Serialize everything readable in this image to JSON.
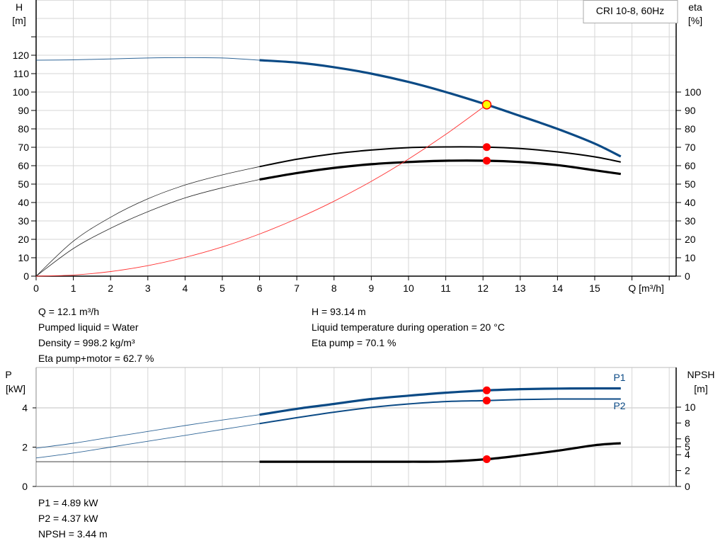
{
  "chart_data": [
    {
      "type": "line",
      "legend": "CRI 10-8, 60Hz",
      "xlabel": "Q [m³/h]",
      "ylabel_left": [
        "H",
        "[m]"
      ],
      "ylabel_right": [
        "eta",
        "[%]"
      ],
      "xlim": [
        0,
        17
      ],
      "ylim": [
        0,
        140
      ],
      "x_ticks": [
        0,
        1,
        2,
        3,
        4,
        5,
        6,
        7,
        8,
        9,
        10,
        11,
        12,
        13,
        14,
        15
      ],
      "y_left_ticks": [
        0,
        10,
        20,
        30,
        40,
        50,
        60,
        70,
        80,
        90,
        100,
        110,
        120
      ],
      "y_right_ticks": [
        0,
        10,
        20,
        30,
        40,
        50,
        60,
        70,
        80,
        90,
        100
      ],
      "grid": true,
      "thick_from_q": 6,
      "series": [
        {
          "id": "H",
          "axis": "left",
          "color": "#0b4a85",
          "x": [
            0,
            1,
            2,
            3,
            4,
            5,
            6,
            7,
            8,
            9,
            10,
            11,
            12.1,
            13,
            14,
            15,
            15.7
          ],
          "y": [
            117.3,
            117.5,
            118,
            118.5,
            118.7,
            118.5,
            117.3,
            116,
            113.5,
            110,
            105.5,
            100,
            93.14,
            87,
            80,
            72,
            65
          ]
        },
        {
          "id": "eta_pump",
          "axis": "right",
          "color": "#000000",
          "x": [
            0,
            1,
            2,
            3,
            4,
            5,
            6,
            7,
            8,
            9,
            10,
            11,
            12.1,
            13,
            14,
            15,
            15.7
          ],
          "y": [
            0,
            19,
            32,
            42,
            49.5,
            55,
            59.5,
            63.5,
            66.5,
            68.5,
            69.8,
            70.2,
            70.1,
            69.3,
            67.5,
            64.8,
            62
          ]
        },
        {
          "id": "eta_pump_motor",
          "axis": "right",
          "color": "#000000",
          "heavy": true,
          "x": [
            0,
            1,
            2,
            3,
            4,
            5,
            6,
            7,
            8,
            9,
            10,
            11,
            12.1,
            13,
            14,
            15,
            15.7
          ],
          "y": [
            0,
            15,
            26,
            35,
            42.5,
            48,
            52.5,
            56,
            58.8,
            60.8,
            62,
            62.7,
            62.7,
            62,
            60.3,
            57.5,
            55.5
          ]
        },
        {
          "id": "system_curve",
          "axis": "left",
          "color": "#ff3030",
          "thin": true,
          "x": [
            0,
            1,
            2,
            3,
            4,
            5,
            6,
            7,
            8,
            9,
            10,
            11,
            12.1
          ],
          "y": [
            0,
            0.6,
            2.5,
            5.7,
            10.2,
            15.9,
            22.9,
            31.2,
            40.7,
            51.5,
            63.6,
            77,
            93.14
          ]
        }
      ],
      "operating_points": [
        {
          "series": "H",
          "x": 12.1,
          "y": 93.14,
          "fill": "#ffff00",
          "stroke": "#ff0000"
        },
        {
          "series": "eta_pump",
          "x": 12.1,
          "y": 70.1,
          "fill": "#ff0000"
        },
        {
          "series": "eta_pump_motor",
          "x": 12.1,
          "y": 62.7,
          "fill": "#ff0000"
        }
      ]
    },
    {
      "type": "line",
      "ylabel_left": [
        "P",
        "[kW]"
      ],
      "ylabel_right": [
        "NPSH",
        "[m]"
      ],
      "xlim": [
        0,
        17
      ],
      "ylim_left": [
        0,
        6
      ],
      "y_left_ticks": [
        0,
        2,
        4
      ],
      "y_right_ticks": [
        0,
        2,
        4,
        5,
        6,
        8,
        10
      ],
      "grid": true,
      "thick_from_q": 6,
      "series": [
        {
          "id": "P1",
          "name": "P1",
          "axis": "left",
          "color": "#0b4a85",
          "x": [
            0,
            1,
            2,
            3,
            4,
            5,
            6,
            7,
            8,
            9,
            10,
            11,
            12.1,
            13,
            14,
            15,
            15.7
          ],
          "y": [
            1.95,
            2.2,
            2.5,
            2.8,
            3.1,
            3.38,
            3.65,
            3.95,
            4.2,
            4.45,
            4.62,
            4.77,
            4.89,
            4.95,
            4.98,
            4.99,
            4.99
          ]
        },
        {
          "id": "P2",
          "name": "P2",
          "axis": "left",
          "color": "#0b4a85",
          "x": [
            0,
            1,
            2,
            3,
            4,
            5,
            6,
            7,
            8,
            9,
            10,
            11,
            12.1,
            13,
            14,
            15,
            15.7
          ],
          "y": [
            1.45,
            1.7,
            2.0,
            2.3,
            2.6,
            2.9,
            3.2,
            3.5,
            3.78,
            4.02,
            4.2,
            4.32,
            4.37,
            4.42,
            4.45,
            4.45,
            4.45
          ]
        },
        {
          "id": "NPSH",
          "axis": "right",
          "color": "#000000",
          "x": [
            0,
            1,
            2,
            3,
            4,
            5,
            6,
            7,
            8,
            9,
            10,
            11,
            12.1,
            13,
            14,
            15,
            15.7
          ],
          "y": [
            3.12,
            3.12,
            3.12,
            3.12,
            3.12,
            3.12,
            3.12,
            3.12,
            3.12,
            3.12,
            3.12,
            3.14,
            3.44,
            3.9,
            4.5,
            5.2,
            5.45
          ]
        }
      ],
      "operating_points": [
        {
          "series": "P1",
          "x": 12.1,
          "y": 4.89,
          "fill": "#ff0000"
        },
        {
          "series": "P2",
          "x": 12.1,
          "y": 4.37,
          "fill": "#ff0000"
        },
        {
          "series": "NPSH",
          "x": 12.1,
          "y": 3.44,
          "fill": "#ff0000"
        }
      ]
    }
  ],
  "info_top": {
    "left": [
      "Q = 12.1 m³/h",
      "Pumped liquid = Water",
      "Density = 998.2 kg/m³",
      "Eta pump+motor = 62.7 %"
    ],
    "right": [
      "H = 93.14 m",
      "Liquid temperature during operation = 20 °C",
      "Eta pump = 70.1 %"
    ]
  },
  "info_bottom": [
    "P1 = 4.89 kW",
    "P2 = 4.37 kW",
    "NPSH = 3.44 m"
  ]
}
